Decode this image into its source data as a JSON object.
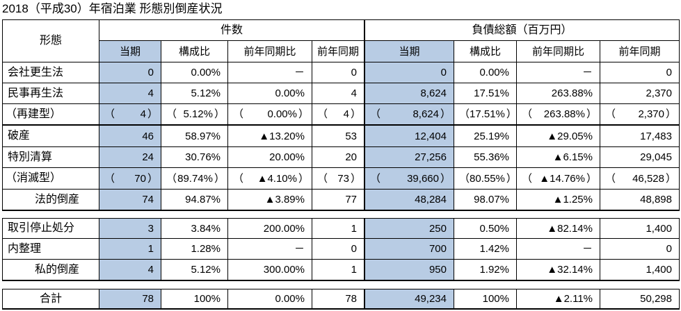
{
  "colors": {
    "highlight": "#b8cce4"
  },
  "chart_data": {
    "type": "table",
    "title": "2018（平成30）年宿泊業 形態別倒産状況",
    "row_header": "形態",
    "column_groups": [
      {
        "label": "件数",
        "columns": [
          "当期",
          "構成比",
          "前年同期比",
          "前年同期"
        ]
      },
      {
        "label": "負債総額（百万円）",
        "columns": [
          "当期",
          "構成比",
          "前年同期比",
          "前年同期"
        ]
      }
    ],
    "sections": [
      {
        "rows": [
          {
            "label": "会社更生法",
            "values": [
              "0",
              "0.00%",
              "－",
              "0",
              "0",
              "0.00%",
              "－",
              "0"
            ]
          },
          {
            "label": "民事再生法",
            "values": [
              "4",
              "5.12%",
              "0.00%",
              "4",
              "8,624",
              "17.51%",
              "263.88%",
              "2,370"
            ]
          },
          {
            "label": "（再建型）",
            "values": [
              "（4）",
              "（5.12%）",
              "（0.00%）",
              "（4）",
              "（8,624）",
              "（17.51%）",
              "（263.88%）",
              "（2,370）"
            ]
          },
          {
            "label": "破産",
            "values": [
              "46",
              "58.97%",
              "▲13.20%",
              "53",
              "12,404",
              "25.19%",
              "▲29.05%",
              "17,483"
            ]
          },
          {
            "label": "特別清算",
            "values": [
              "24",
              "30.76%",
              "20.00%",
              "20",
              "27,256",
              "55.36%",
              "▲6.15%",
              "29,045"
            ]
          },
          {
            "label": "（消滅型）",
            "values": [
              "（70）",
              "（89.74%）",
              "（▲4.10%）",
              "（73）",
              "（39,660）",
              "（80.55%）",
              "（▲14.76%）",
              "（46,528）"
            ]
          },
          {
            "label": "法的倒産",
            "values": [
              "74",
              "94.87%",
              "▲3.89%",
              "77",
              "48,284",
              "98.07%",
              "▲1.25%",
              "48,898"
            ]
          }
        ]
      },
      {
        "rows": [
          {
            "label": "取引停止処分",
            "values": [
              "3",
              "3.84%",
              "200.00%",
              "1",
              "250",
              "0.50%",
              "▲82.14%",
              "1,400"
            ]
          },
          {
            "label": "内整理",
            "values": [
              "1",
              "1.28%",
              "－",
              "0",
              "700",
              "1.42%",
              "－",
              "0"
            ]
          },
          {
            "label": "私的倒産",
            "values": [
              "4",
              "5.12%",
              "300.00%",
              "1",
              "950",
              "1.92%",
              "▲32.14%",
              "1,400"
            ]
          }
        ]
      },
      {
        "rows": [
          {
            "label": "合計",
            "values": [
              "78",
              "100%",
              "0.00%",
              "78",
              "49,234",
              "100%",
              "▲2.11%",
              "50,298"
            ]
          }
        ]
      }
    ]
  }
}
